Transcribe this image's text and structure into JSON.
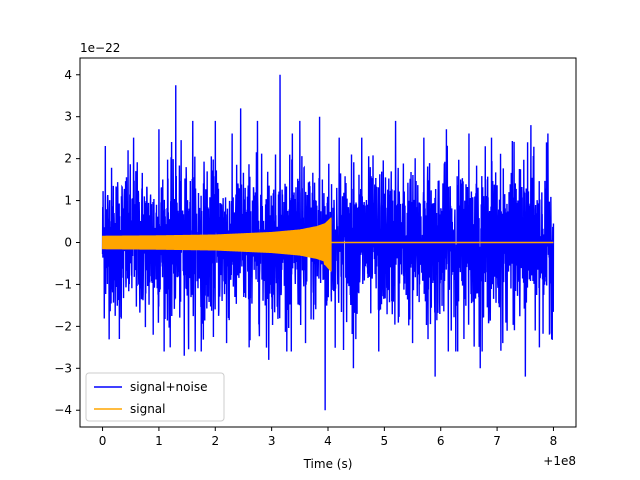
{
  "chart_data": {
    "type": "line",
    "title": "",
    "xlabel": "Time (s)",
    "ylabel": "",
    "x_offset_label": "+1e8",
    "y_exponent_label": "1e−22",
    "xlim": [
      -0.4,
      8.4
    ],
    "ylim": [
      -4.4,
      4.4
    ],
    "xticks": [
      0,
      1,
      2,
      3,
      4,
      5,
      6,
      7,
      8
    ],
    "yticks": [
      -4,
      -3,
      -2,
      -1,
      0,
      1,
      2,
      3,
      4
    ],
    "xtick_labels": [
      "0",
      "1",
      "2",
      "3",
      "4",
      "5",
      "6",
      "7",
      "8"
    ],
    "ytick_labels": [
      "−4",
      "−3",
      "−2",
      "−1",
      "0",
      "1",
      "2",
      "3",
      "4"
    ],
    "grid": false,
    "legend_position": "lower-left",
    "series": [
      {
        "name": "signal+noise",
        "color": "#0000ff",
        "style": "dense noisy band",
        "x_range": [
          0,
          8
        ],
        "typical_band": [
          -1.6,
          1.6
        ],
        "spikes": [
          {
            "x": 0.05,
            "y": 2.3
          },
          {
            "x": 0.3,
            "y": -2.3
          },
          {
            "x": 0.55,
            "y": 2.5
          },
          {
            "x": 0.9,
            "y": -2.2
          },
          {
            "x": 1.0,
            "y": 2.7
          },
          {
            "x": 1.2,
            "y": -2.5
          },
          {
            "x": 1.3,
            "y": 3.75
          },
          {
            "x": 1.45,
            "y": -2.7
          },
          {
            "x": 1.6,
            "y": 2.9
          },
          {
            "x": 1.75,
            "y": -2.6
          },
          {
            "x": 2.0,
            "y": 2.9
          },
          {
            "x": 2.2,
            "y": -2.4
          },
          {
            "x": 2.45,
            "y": 3.2
          },
          {
            "x": 2.6,
            "y": -2.5
          },
          {
            "x": 2.75,
            "y": 2.9
          },
          {
            "x": 2.95,
            "y": -2.8
          },
          {
            "x": 3.15,
            "y": 4.0
          },
          {
            "x": 3.35,
            "y": -2.6
          },
          {
            "x": 3.5,
            "y": 2.9
          },
          {
            "x": 3.6,
            "y": -2.4
          },
          {
            "x": 3.85,
            "y": 3.0
          },
          {
            "x": 3.95,
            "y": -4.0
          },
          {
            "x": 4.2,
            "y": 2.5
          },
          {
            "x": 4.45,
            "y": -3.0
          },
          {
            "x": 4.6,
            "y": 2.5
          },
          {
            "x": 4.9,
            "y": -2.6
          },
          {
            "x": 5.2,
            "y": 2.9
          },
          {
            "x": 5.5,
            "y": -2.4
          },
          {
            "x": 5.7,
            "y": 2.5
          },
          {
            "x": 5.9,
            "y": -3.2
          },
          {
            "x": 6.1,
            "y": 2.7
          },
          {
            "x": 6.3,
            "y": -2.6
          },
          {
            "x": 6.5,
            "y": 2.6
          },
          {
            "x": 6.7,
            "y": -3.0
          },
          {
            "x": 6.9,
            "y": 2.5
          },
          {
            "x": 7.1,
            "y": -2.4
          },
          {
            "x": 7.3,
            "y": 2.4
          },
          {
            "x": 7.5,
            "y": -3.2
          },
          {
            "x": 7.6,
            "y": 2.8
          },
          {
            "x": 7.75,
            "y": -2.5
          },
          {
            "x": 7.9,
            "y": 2.6
          },
          {
            "x": 7.97,
            "y": -2.3
          }
        ]
      },
      {
        "name": "signal",
        "color": "#ffa500",
        "style": "chirp envelope",
        "x_range": [
          0,
          8
        ],
        "envelope": [
          {
            "x": 0.0,
            "y": 0.15
          },
          {
            "x": 1.0,
            "y": 0.16
          },
          {
            "x": 2.0,
            "y": 0.18
          },
          {
            "x": 3.0,
            "y": 0.24
          },
          {
            "x": 3.5,
            "y": 0.3
          },
          {
            "x": 3.8,
            "y": 0.38
          },
          {
            "x": 3.95,
            "y": 0.45
          },
          {
            "x": 4.05,
            "y": 0.58
          },
          {
            "x": 4.06,
            "y": 0.0
          },
          {
            "x": 8.0,
            "y": 0.0
          }
        ],
        "min_peak": {
          "x": 4.05,
          "y": -0.68
        }
      }
    ]
  }
}
